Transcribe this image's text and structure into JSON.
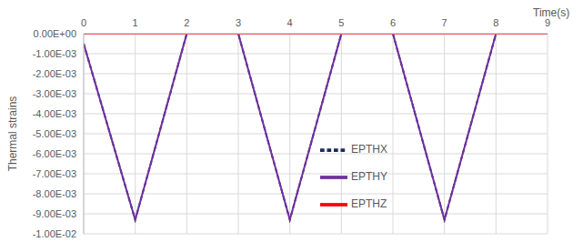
{
  "chart_data": {
    "type": "line",
    "x_label": "Time(s)",
    "y_label": "Thermal strains",
    "x": [
      0,
      1,
      2,
      3,
      4,
      5,
      6,
      7,
      8,
      9
    ],
    "series": [
      {
        "name": "EPTHX",
        "color": "#1f2a5a",
        "line_style": "dashed",
        "values": [
          -0.0005,
          -0.0093,
          0,
          0,
          -0.0093,
          0,
          0,
          -0.0093,
          0,
          0
        ]
      },
      {
        "name": "EPTHY",
        "color": "#7030a0",
        "line_style": "solid",
        "values": [
          -0.0005,
          -0.0093,
          0,
          0,
          -0.0093,
          0,
          0,
          -0.0093,
          0,
          0
        ]
      },
      {
        "name": "EPTHZ",
        "color": "#ff0000",
        "line_style": "solid",
        "values": [
          0,
          0,
          0,
          0,
          0,
          0,
          0,
          0,
          0,
          0
        ]
      }
    ],
    "xlim": [
      0,
      9
    ],
    "xticks": [
      0,
      1,
      2,
      3,
      4,
      5,
      6,
      7,
      8,
      9
    ],
    "ylim": [
      -0.01,
      0
    ],
    "yticks": [
      {
        "value": 0,
        "label": "0.00E+00"
      },
      {
        "value": -0.001,
        "label": "-1.00E-03"
      },
      {
        "value": -0.002,
        "label": "-2.00E-03"
      },
      {
        "value": -0.003,
        "label": "-3.00E-03"
      },
      {
        "value": -0.004,
        "label": "-4.00E-03"
      },
      {
        "value": -0.005,
        "label": "-5.00E-03"
      },
      {
        "value": -0.006,
        "label": "-6.00E-03"
      },
      {
        "value": -0.007,
        "label": "-7.00E-03"
      },
      {
        "value": -0.008,
        "label": "-8.00E-03"
      },
      {
        "value": -0.009,
        "label": "-9.00E-03"
      },
      {
        "value": -0.01,
        "label": "-1.00E-02"
      }
    ],
    "grid": true,
    "legend": "center"
  }
}
